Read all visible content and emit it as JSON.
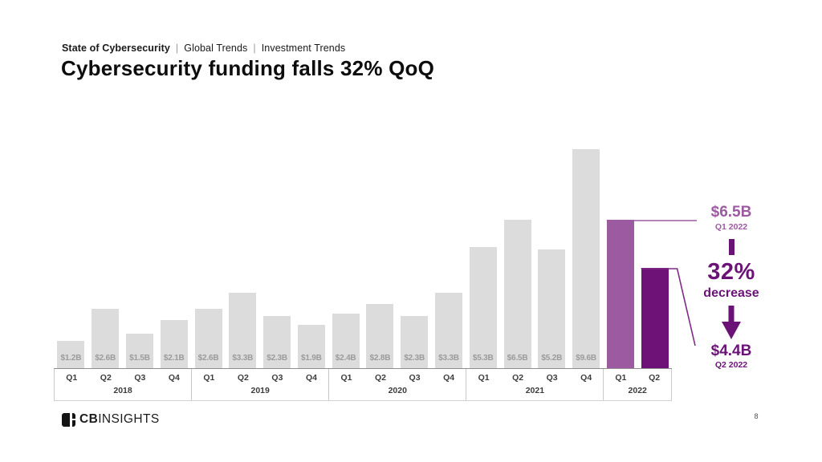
{
  "header": {
    "eyebrow": {
      "brand": "State of Cybersecurity",
      "separator": "|",
      "items": [
        "Global Trends",
        "Investment Trends"
      ]
    },
    "title": "Cybersecurity funding falls 32% QoQ"
  },
  "chart_data": {
    "type": "bar",
    "title": "Cybersecurity funding falls 32% QoQ",
    "unit": "USD billions",
    "ylabel": "",
    "xlabel": "",
    "ylim": [
      0,
      10
    ],
    "grid": false,
    "legend": "none",
    "years": [
      {
        "year": "2018",
        "quarters": [
          "Q1",
          "Q2",
          "Q3",
          "Q4"
        ]
      },
      {
        "year": "2019",
        "quarters": [
          "Q1",
          "Q2",
          "Q3",
          "Q4"
        ]
      },
      {
        "year": "2020",
        "quarters": [
          "Q1",
          "Q2",
          "Q3",
          "Q4"
        ]
      },
      {
        "year": "2021",
        "quarters": [
          "Q1",
          "Q2",
          "Q3",
          "Q4"
        ]
      },
      {
        "year": "2022",
        "quarters": [
          "Q1",
          "Q2"
        ]
      }
    ],
    "x": [
      "Q1 2018",
      "Q2 2018",
      "Q3 2018",
      "Q4 2018",
      "Q1 2019",
      "Q2 2019",
      "Q3 2019",
      "Q4 2019",
      "Q1 2020",
      "Q2 2020",
      "Q3 2020",
      "Q4 2020",
      "Q1 2021",
      "Q2 2021",
      "Q3 2021",
      "Q4 2021",
      "Q1 2022",
      "Q2 2022"
    ],
    "values": [
      1.2,
      2.6,
      1.5,
      2.1,
      2.6,
      3.3,
      2.3,
      1.9,
      2.4,
      2.8,
      2.3,
      3.3,
      5.3,
      6.5,
      5.2,
      9.6,
      6.5,
      4.4
    ],
    "bar_labels": [
      "$1.2B",
      "$2.6B",
      "$1.5B",
      "$2.1B",
      "$2.6B",
      "$3.3B",
      "$2.3B",
      "$1.9B",
      "$2.4B",
      "$2.8B",
      "$2.3B",
      "$3.3B",
      "$5.3B",
      "$6.5B",
      "$5.2B",
      "$9.6B",
      "",
      ""
    ],
    "bar_styles": [
      "gray",
      "gray",
      "gray",
      "gray",
      "gray",
      "gray",
      "gray",
      "gray",
      "gray",
      "gray",
      "gray",
      "gray",
      "gray",
      "gray",
      "gray",
      "gray",
      "light",
      "dark"
    ]
  },
  "annotation": {
    "q1_value": "$6.5B",
    "q1_label": "Q1 2022",
    "pct": "32%",
    "pct_label": "decrease",
    "q2_value": "$4.4B",
    "q2_label": "Q2 2022"
  },
  "colors": {
    "bar_gray": "#dcdcdc",
    "bar_light_purple": "#9c5aa1",
    "bar_dark_purple": "#6e1278",
    "text_dark_purple": "#6b1277",
    "line_light": "#9c5aa1",
    "line_dark": "#7e2a86",
    "value_label": "#9b9b9b"
  },
  "footer": {
    "logo_bold": "CB",
    "logo_rest": "INSIGHTS",
    "page_number": "8"
  }
}
